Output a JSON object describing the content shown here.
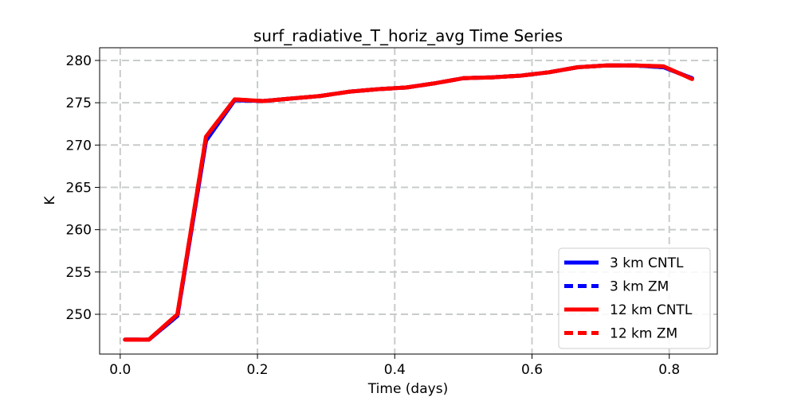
{
  "chart_data": {
    "type": "line",
    "title": "surf_radiative_T_horiz_avg Time Series",
    "xlabel": "Time (days)",
    "ylabel": "K",
    "xlim": [
      -0.03,
      0.87
    ],
    "ylim": [
      245.3,
      281.5
    ],
    "xticks": [
      0.0,
      0.2,
      0.4,
      0.6,
      0.8
    ],
    "xtick_labels": [
      "0.0",
      "0.2",
      "0.4",
      "0.6",
      "0.8"
    ],
    "yticks": [
      250,
      255,
      260,
      265,
      270,
      275,
      280
    ],
    "ytick_labels": [
      "250",
      "255",
      "260",
      "265",
      "270",
      "275",
      "280"
    ],
    "grid": true,
    "legend_position": "bottom-right",
    "series": [
      {
        "name": "3 km CNTL",
        "color": "#0000ff",
        "style": "solid",
        "x": [
          0.0069,
          0.0417,
          0.0833,
          0.125,
          0.1667,
          0.2083,
          0.25,
          0.2917,
          0.3333,
          0.375,
          0.4167,
          0.4583,
          0.5,
          0.5417,
          0.5833,
          0.625,
          0.6667,
          0.7083,
          0.75,
          0.7917,
          0.8333
        ],
        "y": [
          247.0,
          247.0,
          249.8,
          270.5,
          275.3,
          275.2,
          275.5,
          275.8,
          276.3,
          276.6,
          276.8,
          277.3,
          277.9,
          278.0,
          278.2,
          278.6,
          279.2,
          279.4,
          279.4,
          279.2,
          277.9
        ]
      },
      {
        "name": "3 km ZM",
        "color": "#0000ff",
        "style": "dashed",
        "x": [
          0.0069,
          0.0417,
          0.0833,
          0.125,
          0.1667,
          0.2083,
          0.25,
          0.2917,
          0.3333,
          0.375,
          0.4167,
          0.4583,
          0.5,
          0.5417,
          0.5833,
          0.625,
          0.6667,
          0.7083,
          0.75,
          0.7917,
          0.8333
        ],
        "y": [
          247.0,
          247.0,
          249.8,
          270.6,
          275.3,
          275.2,
          275.5,
          275.8,
          276.3,
          276.6,
          276.8,
          277.3,
          277.9,
          278.0,
          278.2,
          278.6,
          279.2,
          279.4,
          279.4,
          279.2,
          277.9
        ]
      },
      {
        "name": "12 km CNTL",
        "color": "#ff0000",
        "style": "solid",
        "x": [
          0.0069,
          0.0417,
          0.0833,
          0.125,
          0.1667,
          0.2083,
          0.25,
          0.2917,
          0.3333,
          0.375,
          0.4167,
          0.4583,
          0.5,
          0.5417,
          0.5833,
          0.625,
          0.6667,
          0.7083,
          0.75,
          0.7917,
          0.8333
        ],
        "y": [
          247.0,
          247.0,
          250.0,
          271.0,
          275.4,
          275.2,
          275.5,
          275.8,
          276.3,
          276.6,
          276.8,
          277.3,
          277.9,
          278.0,
          278.2,
          278.6,
          279.2,
          279.4,
          279.4,
          279.3,
          277.8
        ]
      },
      {
        "name": "12 km ZM",
        "color": "#ff0000",
        "style": "dashed",
        "x": [
          0.0069,
          0.0417,
          0.0833,
          0.125,
          0.1667,
          0.2083,
          0.25,
          0.2917,
          0.3333,
          0.375,
          0.4167,
          0.4583,
          0.5,
          0.5417,
          0.5833,
          0.625,
          0.6667,
          0.7083,
          0.75,
          0.7917,
          0.8333
        ],
        "y": [
          247.0,
          247.0,
          250.0,
          271.0,
          275.4,
          275.2,
          275.5,
          275.8,
          276.3,
          276.6,
          276.8,
          277.3,
          277.9,
          278.0,
          278.2,
          278.6,
          279.2,
          279.4,
          279.4,
          279.3,
          277.8
        ]
      }
    ]
  }
}
